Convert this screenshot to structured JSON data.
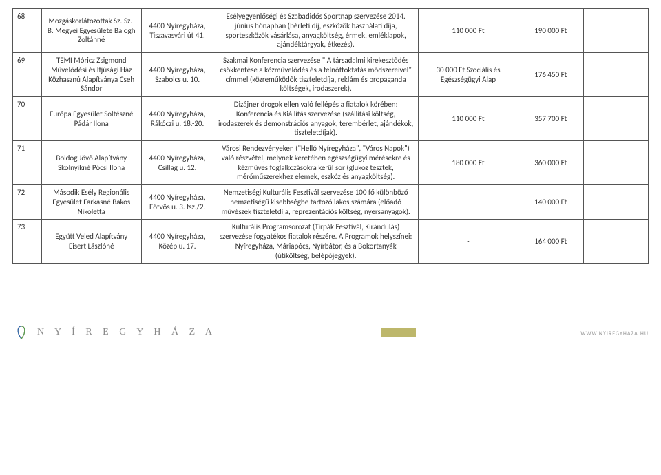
{
  "rows": [
    {
      "num": "68",
      "org": "Mozgáskorlátozottak Sz.-Sz.-B. Megyei Egyesülete Balogh Zoltánné",
      "addr": "4400 Nyíregyháza, Tiszavasvári út 41.",
      "desc": "Esélyegyenlőségi és Szabadidős Sportnap szervezése 2014. június hónapban (bérleti díj, eszközök használati díja, sporteszközök vásárlása, anyagköltség, érmek, emléklapok, ajándéktárgyak, étkezés).",
      "amt1": "110 000 Ft",
      "amt2": "190 000 Ft",
      "amt3": ""
    },
    {
      "num": "69",
      "org": "TEMI Móricz Zsigmond Művelődési és Ifjúsági Ház Közhasznú Alapítványa Cseh Sándor",
      "addr": "4400 Nyíregyháza, Szabolcs u. 10.",
      "desc": "Szakmai Konferencia szervezése \" A társadalmi kirekesztődés csökkentése a közművelődés és a felnőttoktatás módszereivel\" címmel (közreműködők tiszteletdíja, reklám és propaganda költségek, irodaszerek).",
      "amt1": "30 000 Ft Szociális és Egészségügyi Alap",
      "amt2": "176 450 Ft",
      "amt3": ""
    },
    {
      "num": "70",
      "org": "Európa Egyesület Soltészné Pádár Ilona",
      "addr": "4400 Nyíregyháza, Rákóczi u. 18.-20.",
      "desc": "Dizájner drogok ellen való fellépés a fiatalok körében: Konferencia és Kiállítás szervezése (szállítási költség, irodaszerek és demonstrációs anyagok, terembérlet, ajándékok, tiszteletdíjak).",
      "amt1": "110 000 Ft",
      "amt2": "357 700 Ft",
      "amt3": ""
    },
    {
      "num": "71",
      "org": "Boldog Jövő Alapítvány Skolnyikné Pócsi Ilona",
      "addr": "4400 Nyíregyháza, Csillag u. 12.",
      "desc": "Városi Rendezvényeken (\"Helló Nyíregyháza\", \"Város Napok\") való részvétel, melynek keretében egészségügyi mérésekre és kézműves foglalkozásokra kerül sor (glukoz tesztek, mérőműszerekhez elemek, eszköz és anyagköltség).",
      "amt1": "180 000 Ft",
      "amt2": "360 000 Ft",
      "amt3": ""
    },
    {
      "num": "72",
      "org": "Második Esély Regionális Egyesület Farkasné Bakos Nikoletta",
      "addr": "4400 Nyíregyháza, Eötvös u. 3. fsz./2.",
      "desc": "Nemzetiségi Kulturális Fesztivál szervezése 100 fő különböző nemzetiségű kisebbségbe tartozó lakos számára (előadó művészek tiszteletdíja, reprezentációs költség, nyersanyagok).",
      "amt1": "-",
      "amt2": "140 000 Ft",
      "amt3": ""
    },
    {
      "num": "73",
      "org": "Együtt Veled Alapítvány Eisert Lászlóné",
      "addr": "4400 Nyíregyháza, Közép u. 17.",
      "desc": "Kulturális Programsorozat (Tirpák Fesztivál, Kirándulás) szervezése fogyatékos fiatalok részére. A Programok helyszínei: Nyíregyháza, Máriapócs, Nyírbátor, és a Bokortanyák (útiköltség, belépőjegyek).",
      "amt1": "-",
      "amt2": "164 000 Ft",
      "amt3": ""
    }
  ],
  "footer": {
    "brand": "N Y Í R E G Y H Á Z A",
    "url": "WWW.NYIREGYHAZA.HU"
  }
}
